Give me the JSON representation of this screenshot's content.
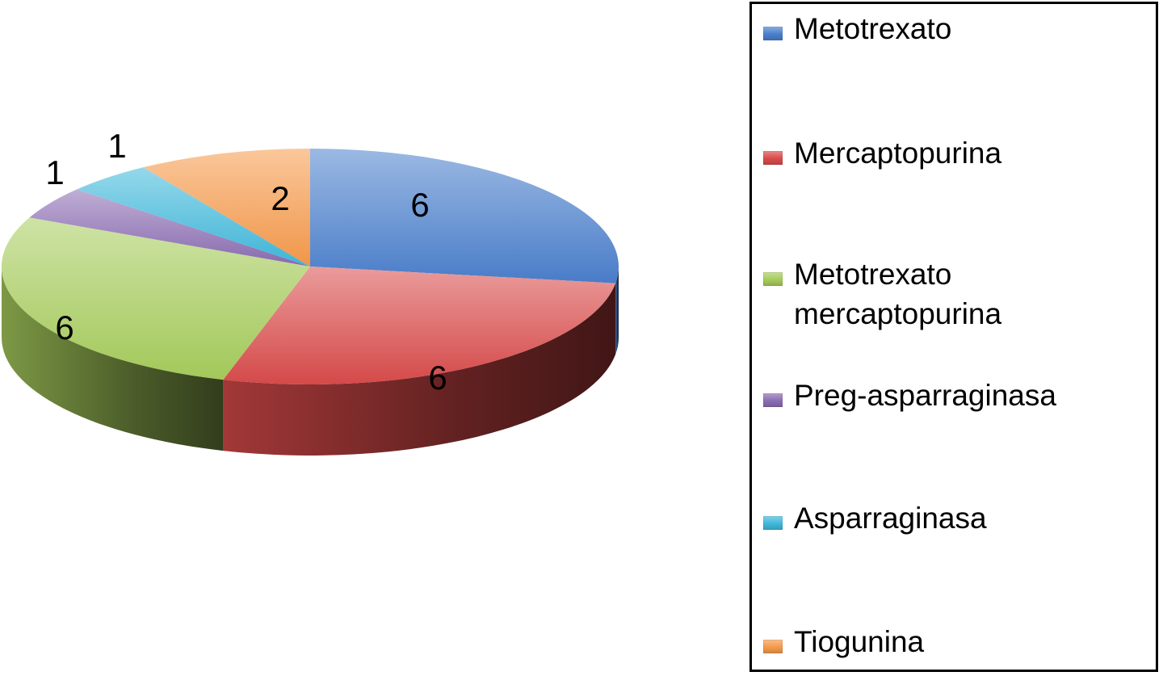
{
  "chart_data": {
    "type": "pie",
    "categories": [
      "Metotrexato",
      "Mercaptopurina",
      "Metotrexato\nmercaptopurina",
      "Preg-asparraginasa",
      "Asparraginasa",
      "Tiogunina"
    ],
    "values": [
      6,
      6,
      6,
      1,
      1,
      2
    ],
    "data_labels": [
      "6",
      "6",
      "6",
      "1",
      "1",
      "2"
    ],
    "colors": [
      "#4a7fcc",
      "#d94a4a",
      "#a6cc5c",
      "#8a6cb2",
      "#3fb8da",
      "#f5994a"
    ],
    "title": "",
    "legend_position": "right",
    "style": "3d-pie"
  },
  "legend": {
    "items": [
      {
        "label": "Metotrexato",
        "color": "#4a7fcc"
      },
      {
        "label": "Mercaptopurina",
        "color": "#d94a4a"
      },
      {
        "label": "Metotrexato\nmercaptopurina",
        "color": "#a6cc5c"
      },
      {
        "label": "Preg-asparraginasa",
        "color": "#8a6cb2"
      },
      {
        "label": "Asparraginasa",
        "color": "#3fb8da"
      },
      {
        "label": "Tiogunina",
        "color": "#f5994a"
      }
    ]
  }
}
